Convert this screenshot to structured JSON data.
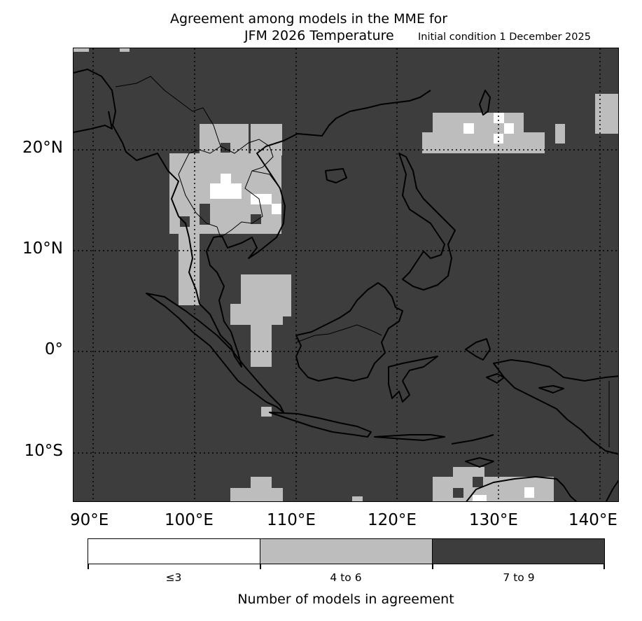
{
  "title": {
    "line1": "Agreement among models in the MME for",
    "line2": "JFM 2026  Temperature",
    "right": "Initial condition 1 December 2025"
  },
  "map": {
    "lat_labels": [
      "20°N",
      "10°N",
      "0°",
      "10°S"
    ],
    "lon_labels": [
      "90°E",
      "100°E",
      "110°E",
      "120°E",
      "130°E",
      "140°E"
    ],
    "gridlines": "dotted",
    "background_class": "7 to 9"
  },
  "colorbar": {
    "title": "Number of models in agreement",
    "categories": [
      {
        "label": "≤3",
        "color": "#ffffff"
      },
      {
        "label": "4 to 6",
        "color": "#bdbdbd"
      },
      {
        "label": "7 to 9",
        "color": "#3d3d3d"
      }
    ]
  }
}
